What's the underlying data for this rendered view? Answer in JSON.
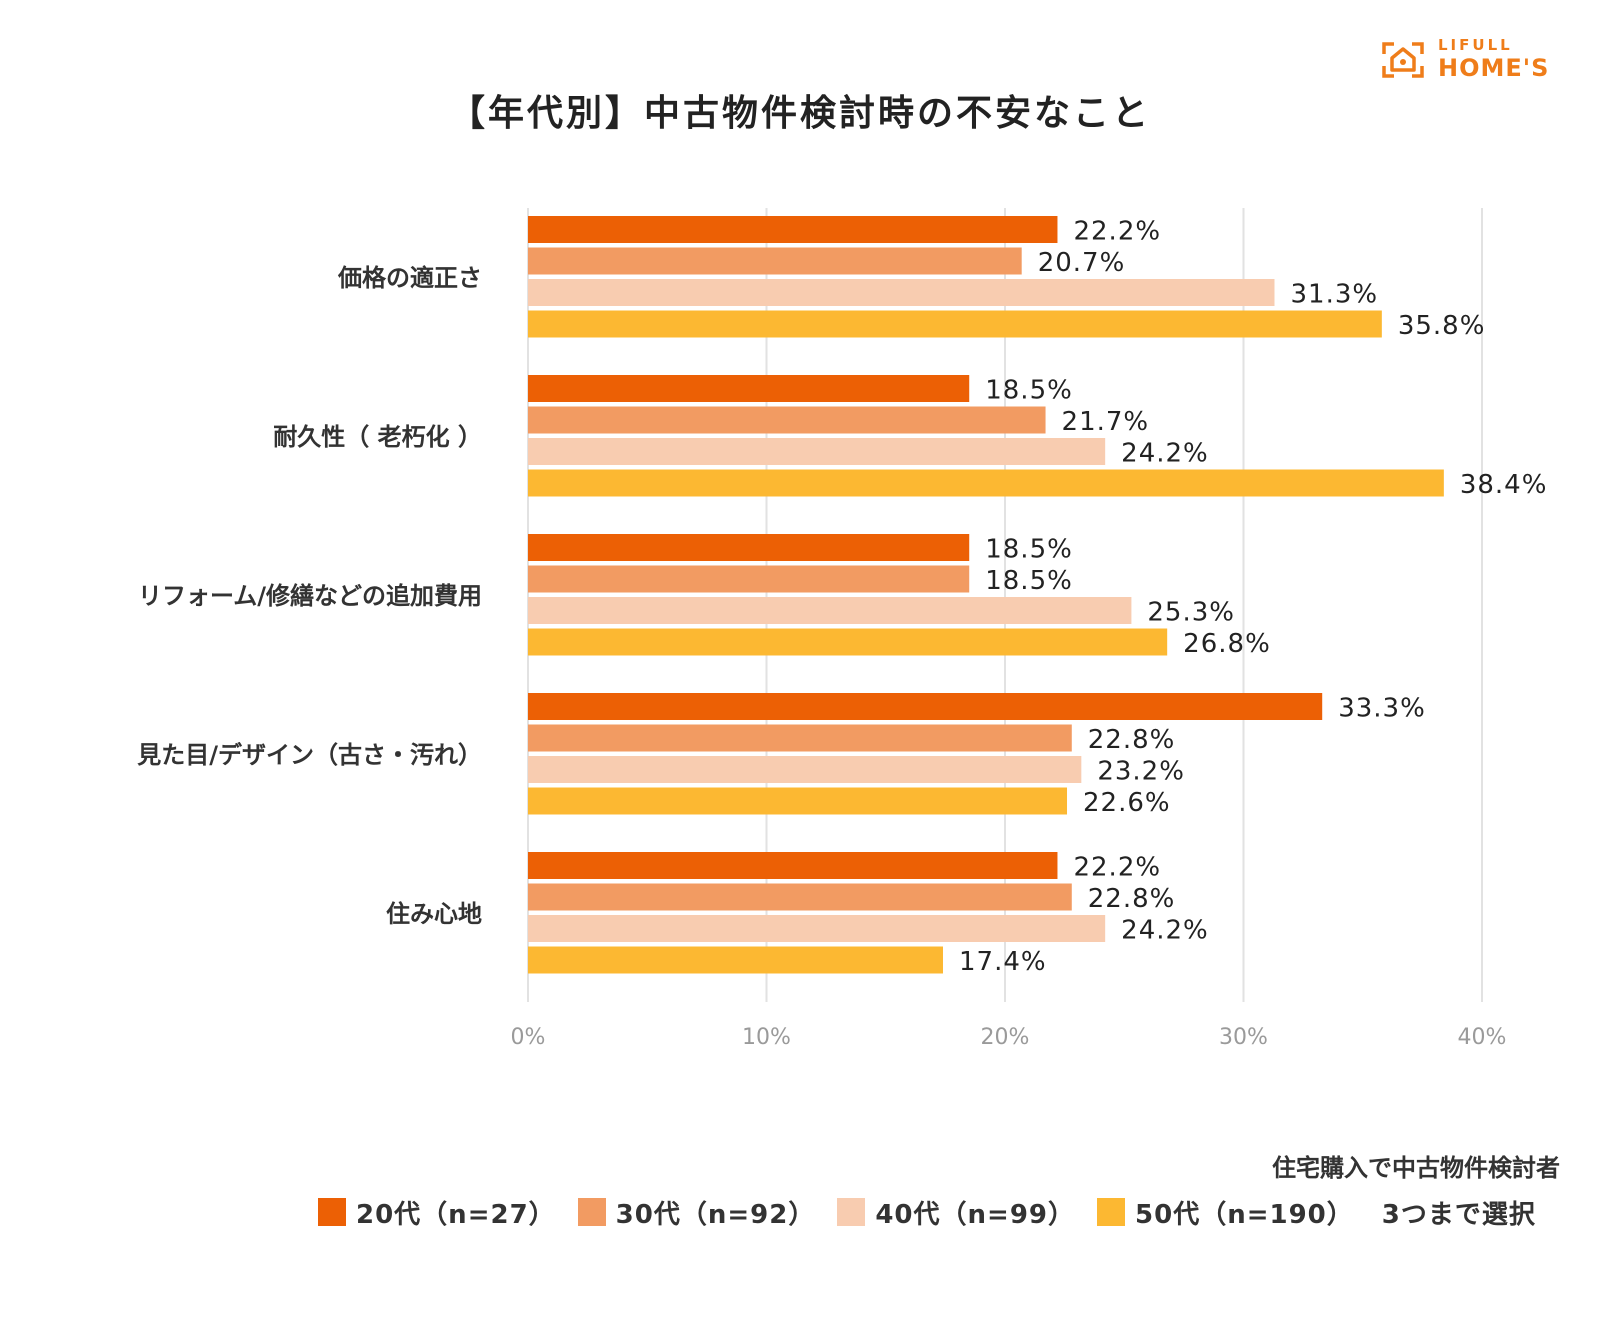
{
  "logo": {
    "brand_top": "LIFULL",
    "brand_main": "HOME'S",
    "icon": "home-logo-icon"
  },
  "chart_data": {
    "type": "bar",
    "orientation": "horizontal",
    "title": "【年代別】中古物件検討時の不安なこと",
    "categories": [
      "価格の適正さ",
      "耐久性（ 老朽化 ）",
      "リフォーム/修繕などの追加費用",
      "見た目/デザイン（古さ・汚れ）",
      "住み心地"
    ],
    "series": [
      {
        "name": "20代（n=27）",
        "color": "#ec6005",
        "values": [
          22.2,
          18.5,
          18.5,
          33.3,
          22.2
        ]
      },
      {
        "name": "30代（n=92）",
        "color": "#f29b62",
        "values": [
          20.7,
          21.7,
          18.5,
          22.8,
          22.8
        ]
      },
      {
        "name": "40代（n=99）",
        "color": "#f8ccb0",
        "values": [
          31.3,
          24.2,
          25.3,
          23.2,
          24.2
        ]
      },
      {
        "name": "50代（n=190）",
        "color": "#fcb832",
        "values": [
          35.8,
          38.4,
          26.8,
          22.6,
          17.4
        ]
      }
    ],
    "xlim": [
      0,
      40
    ],
    "ticks": [
      0,
      10,
      20,
      30,
      40
    ],
    "tick_labels": [
      "0%",
      "10%",
      "20%",
      "30%",
      "40%"
    ],
    "value_format": "{v}%",
    "grid": "vertical",
    "legend": "bottom"
  },
  "respondents_note": "住宅購入で中古物件検討者",
  "selection_note": "3つまで選択"
}
